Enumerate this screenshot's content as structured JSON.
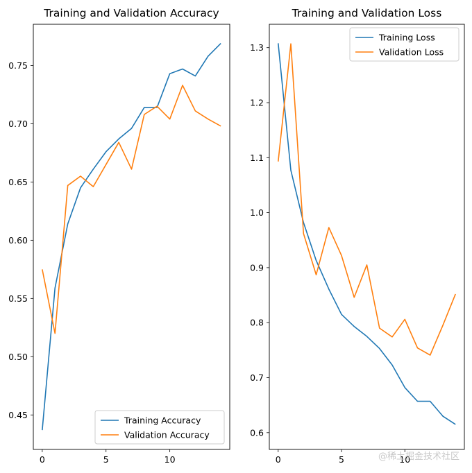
{
  "watermark": "@稀土掘金技术社区",
  "colors": {
    "blue": "#1f77b4",
    "orange": "#ff7f0e",
    "axis": "#000000"
  },
  "chart_data": [
    {
      "type": "line",
      "title": "Training and Validation Accuracy",
      "xlabel": "",
      "ylabel": "",
      "xlim": [
        -0.7,
        14.7
      ],
      "ylim": [
        0.4204,
        0.7854
      ],
      "xticks": [
        0,
        5,
        10
      ],
      "yticks": [
        0.45,
        0.5,
        0.55,
        0.6,
        0.65,
        0.7,
        0.75
      ],
      "ytick_labels": [
        "0.45",
        "0.50",
        "0.55",
        "0.60",
        "0.65",
        "0.70",
        "0.75"
      ],
      "legend_position": "lower right",
      "x": [
        0,
        1,
        2,
        3,
        4,
        5,
        6,
        7,
        8,
        9,
        10,
        11,
        12,
        13,
        14
      ],
      "series": [
        {
          "name": "Training Accuracy",
          "color": "#1f77b4",
          "values": [
            0.437,
            0.559,
            0.614,
            0.645,
            0.661,
            0.676,
            0.687,
            0.696,
            0.714,
            0.714,
            0.743,
            0.747,
            0.741,
            0.758,
            0.769
          ]
        },
        {
          "name": "Validation Accuracy",
          "color": "#ff7f0e",
          "values": [
            0.575,
            0.52,
            0.647,
            0.655,
            0.646,
            0.665,
            0.684,
            0.661,
            0.708,
            0.715,
            0.704,
            0.733,
            0.711,
            0.704,
            0.698
          ]
        }
      ]
    },
    {
      "type": "line",
      "title": "Training and Validation Loss",
      "xlabel": "",
      "ylabel": "",
      "xlim": [
        -0.7,
        14.7
      ],
      "ylim": [
        0.5695,
        1.3425
      ],
      "xticks": [
        0,
        5,
        10
      ],
      "yticks": [
        0.6,
        0.7,
        0.8,
        0.9,
        1.0,
        1.1,
        1.2,
        1.3
      ],
      "ytick_labels": [
        "0.6",
        "0.7",
        "0.8",
        "0.9",
        "1.0",
        "1.1",
        "1.2",
        "1.3"
      ],
      "legend_position": "upper right",
      "x": [
        0,
        1,
        2,
        3,
        4,
        5,
        6,
        7,
        8,
        9,
        10,
        11,
        12,
        13,
        14
      ],
      "series": [
        {
          "name": "Training Loss",
          "color": "#1f77b4",
          "values": [
            1.308,
            1.077,
            0.982,
            0.913,
            0.861,
            0.815,
            0.793,
            0.775,
            0.753,
            0.723,
            0.682,
            0.657,
            0.657,
            0.63,
            0.615
          ]
        },
        {
          "name": "Validation Loss",
          "color": "#ff7f0e",
          "values": [
            1.093,
            1.307,
            0.962,
            0.887,
            0.973,
            0.922,
            0.846,
            0.905,
            0.79,
            0.774,
            0.806,
            0.754,
            0.741,
            0.795,
            0.852
          ]
        }
      ]
    }
  ]
}
